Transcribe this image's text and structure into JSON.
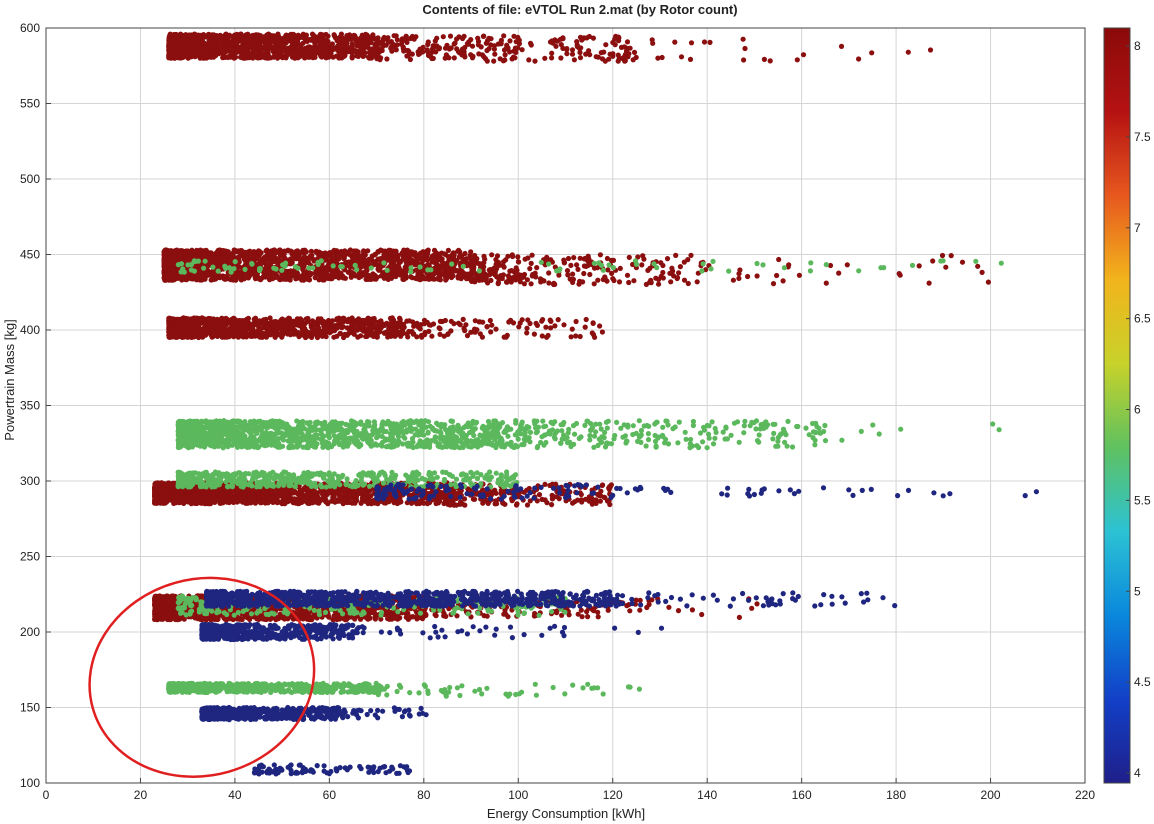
{
  "chart_data": {
    "type": "scatter",
    "title": "Contents of file: eVTOL Run 2.mat (by Rotor count)",
    "xlabel": "Energy Consumption [kWh]",
    "ylabel": "Powertrain Mass [kg]",
    "xlim": [
      0,
      220
    ],
    "ylim": [
      100,
      600
    ],
    "xticks": [
      0,
      20,
      40,
      60,
      80,
      100,
      120,
      140,
      160,
      180,
      200,
      220
    ],
    "yticks": [
      100,
      150,
      200,
      250,
      300,
      350,
      400,
      450,
      500,
      550,
      600
    ],
    "grid": true,
    "colorbar": {
      "min": 4,
      "max": 8,
      "ticks": [
        4,
        4.5,
        5,
        5.5,
        6,
        6.5,
        7,
        7.5,
        8
      ],
      "colors": [
        "#1f1f8a",
        "#1240c8",
        "#0a88dc",
        "#2cc2d4",
        "#5fc15f",
        "#c7d22a",
        "#f2b41c",
        "#e7581e",
        "#b51212",
        "#8b0a0a"
      ]
    },
    "series": [
      {
        "rotors": 8,
        "color": "#8b0f0f",
        "clusters": [
          {
            "x0": 26,
            "x1": 70,
            "y0": 580,
            "y1": 596,
            "n": 1200
          },
          {
            "x0": 70,
            "x1": 125,
            "y0": 578,
            "y1": 595,
            "n": 260
          },
          {
            "x0": 125,
            "x1": 190,
            "y0": 578,
            "y1": 594,
            "n": 22
          },
          {
            "x0": 25,
            "x1": 90,
            "y0": 433,
            "y1": 453,
            "n": 1700
          },
          {
            "x0": 90,
            "x1": 140,
            "y0": 430,
            "y1": 450,
            "n": 260
          },
          {
            "x0": 140,
            "x1": 210,
            "y0": 430,
            "y1": 450,
            "n": 30
          },
          {
            "x0": 26,
            "x1": 75,
            "y0": 395,
            "y1": 408,
            "n": 900
          },
          {
            "x0": 75,
            "x1": 118,
            "y0": 395,
            "y1": 407,
            "n": 120
          },
          {
            "x0": 23,
            "x1": 85,
            "y0": 285,
            "y1": 299,
            "n": 1500
          },
          {
            "x0": 85,
            "x1": 120,
            "y0": 284,
            "y1": 298,
            "n": 220
          },
          {
            "x0": 23,
            "x1": 80,
            "y0": 208,
            "y1": 224,
            "n": 1300
          },
          {
            "x0": 80,
            "x1": 130,
            "y0": 210,
            "y1": 222,
            "n": 140
          },
          {
            "x0": 130,
            "x1": 160,
            "y0": 208,
            "y1": 222,
            "n": 8
          }
        ]
      },
      {
        "rotors": 6,
        "color": "#5cb85c",
        "clusters": [
          {
            "x0": 28,
            "x1": 125,
            "y0": 438,
            "y1": 446,
            "n": 70
          },
          {
            "x0": 125,
            "x1": 205,
            "y0": 438,
            "y1": 446,
            "n": 22
          },
          {
            "x0": 28,
            "x1": 95,
            "y0": 322,
            "y1": 340,
            "n": 1300
          },
          {
            "x0": 95,
            "x1": 165,
            "y0": 322,
            "y1": 340,
            "n": 300
          },
          {
            "x0": 165,
            "x1": 202,
            "y0": 325,
            "y1": 338,
            "n": 8
          },
          {
            "x0": 28,
            "x1": 100,
            "y0": 296,
            "y1": 306,
            "n": 500
          },
          {
            "x0": 28,
            "x1": 110,
            "y0": 211,
            "y1": 224,
            "n": 260
          },
          {
            "x0": 26,
            "x1": 70,
            "y0": 160,
            "y1": 166,
            "n": 650
          },
          {
            "x0": 70,
            "x1": 128,
            "y0": 157,
            "y1": 166,
            "n": 55
          }
        ]
      },
      {
        "rotors": 4,
        "color": "#1f2680",
        "clusters": [
          {
            "x0": 70,
            "x1": 120,
            "y0": 288,
            "y1": 298,
            "n": 120
          },
          {
            "x0": 120,
            "x1": 213,
            "y0": 290,
            "y1": 296,
            "n": 38
          },
          {
            "x0": 34,
            "x1": 120,
            "y0": 217,
            "y1": 227,
            "n": 900
          },
          {
            "x0": 120,
            "x1": 180,
            "y0": 217,
            "y1": 226,
            "n": 60
          },
          {
            "x0": 33,
            "x1": 65,
            "y0": 195,
            "y1": 205,
            "n": 500
          },
          {
            "x0": 65,
            "x1": 135,
            "y0": 196,
            "y1": 204,
            "n": 40
          },
          {
            "x0": 33,
            "x1": 62,
            "y0": 142,
            "y1": 150,
            "n": 500
          },
          {
            "x0": 62,
            "x1": 81,
            "y0": 143,
            "y1": 150,
            "n": 40
          },
          {
            "x0": 44,
            "x1": 77,
            "y0": 106,
            "y1": 112,
            "n": 90
          }
        ]
      }
    ]
  },
  "annotation": {
    "type": "ellipse",
    "color": "#e02020",
    "cx": 33,
    "cy": 170,
    "rx": 24,
    "ry": 65,
    "rotation_deg": -16
  }
}
